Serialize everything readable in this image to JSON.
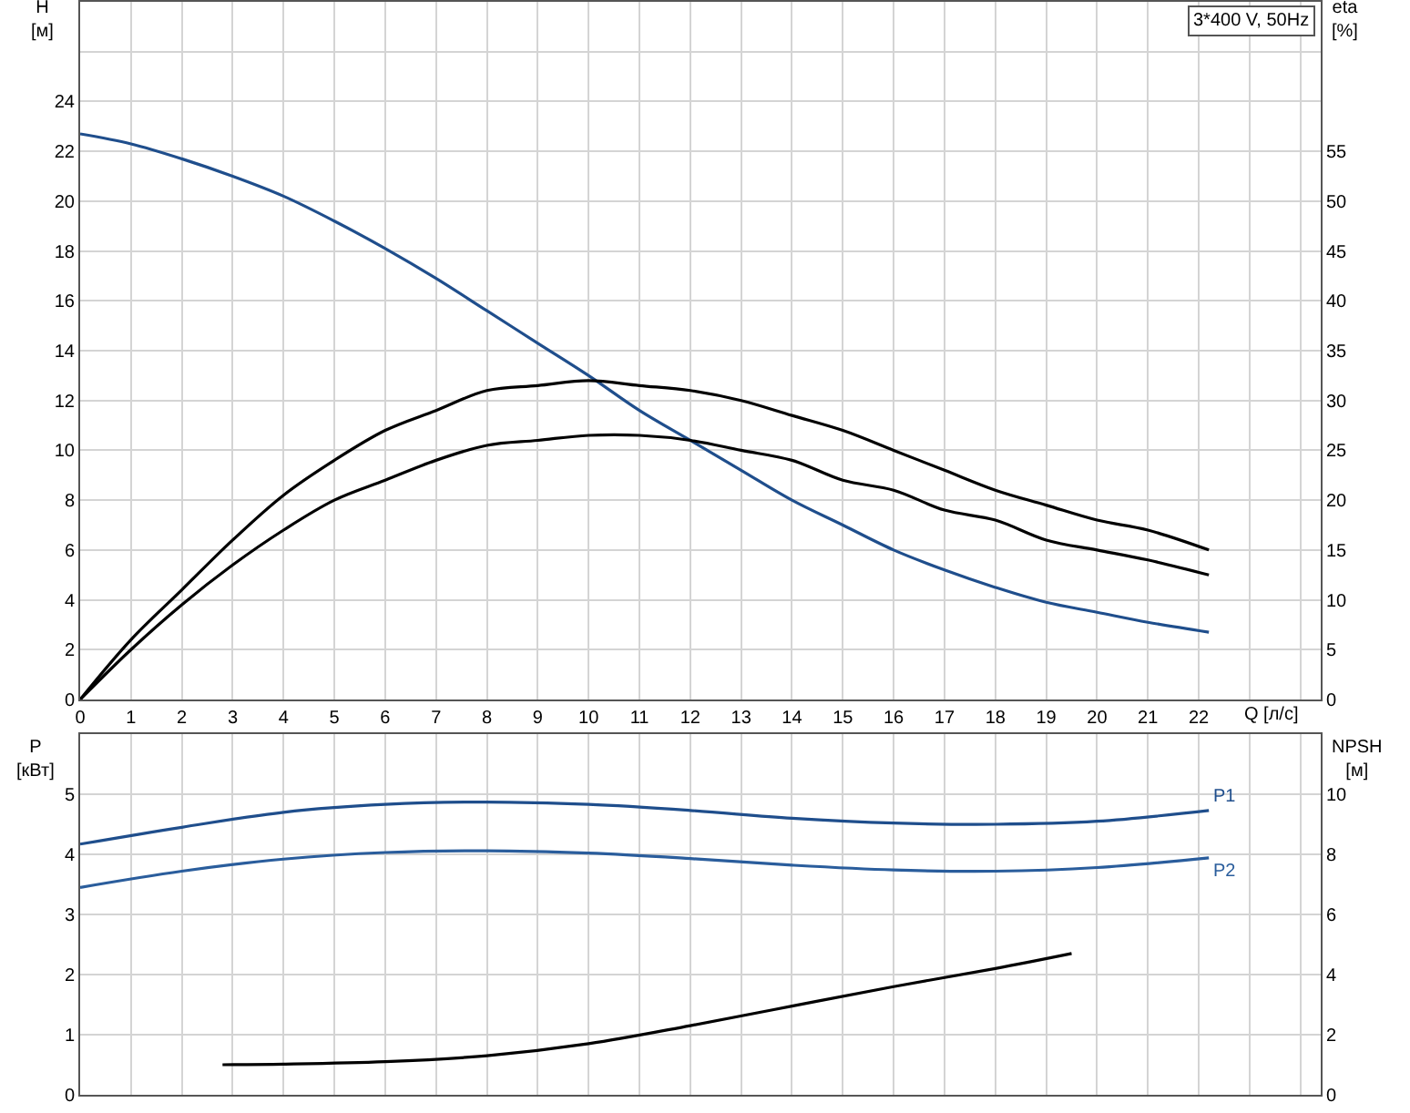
{
  "chart_data": [
    {
      "type": "line",
      "title": "3*400 V, 50Hz",
      "xlabel": "Q [л/с]",
      "ylabel": "H\n[м]",
      "y2label": "eta\n[%]",
      "grid": true,
      "legend": false,
      "line_style": "solid",
      "xlim": [
        0,
        24.4
      ],
      "xticks": [
        0,
        1,
        2,
        3,
        4,
        5,
        6,
        7,
        8,
        9,
        10,
        11,
        12,
        13,
        14,
        15,
        16,
        17,
        18,
        19,
        20,
        21,
        22,
        {
          "value": 23,
          "label": null
        },
        {
          "value": 24,
          "label": null
        }
      ],
      "ylim": [
        0,
        28
      ],
      "yticks": [
        0,
        2,
        4,
        6,
        8,
        10,
        12,
        14,
        16,
        18,
        20,
        22,
        24,
        {
          "value": 26,
          "label": null
        }
      ],
      "y2lim": [
        0,
        70
      ],
      "y2ticks": [
        0,
        5,
        10,
        15,
        20,
        25,
        30,
        35,
        40,
        45,
        50,
        55
      ],
      "series": [
        {
          "color": "#1f4e8c",
          "x": [
            0,
            1,
            2,
            3,
            4,
            5,
            6,
            7,
            8,
            9,
            10,
            11,
            12,
            13,
            14,
            15,
            16,
            17,
            18,
            19,
            20,
            21,
            22.2
          ],
          "values": [
            22.7,
            22.3,
            21.7,
            21.0,
            20.2,
            19.2,
            18.1,
            16.9,
            15.6,
            14.3,
            13.0,
            11.6,
            10.4,
            9.2,
            8.0,
            7.0,
            6.0,
            5.2,
            4.5,
            3.9,
            3.5,
            3.1,
            2.7
          ]
        },
        {
          "color": "#000000",
          "axis": "y2",
          "x": [
            0,
            1,
            2,
            3,
            4,
            5,
            6,
            7,
            8,
            9,
            10,
            11,
            12,
            13,
            14,
            15,
            16,
            17,
            18,
            19,
            20,
            21,
            22.2
          ],
          "values": [
            0,
            6,
            11,
            16,
            20.5,
            24,
            27,
            29,
            31,
            31.5,
            32,
            31.5,
            31,
            30,
            28.5,
            27,
            25,
            23,
            21,
            19.5,
            18,
            17,
            15
          ]
        },
        {
          "color": "#000000",
          "axis": "y2",
          "x": [
            0,
            1,
            2,
            3,
            4,
            5,
            6,
            7,
            8,
            9,
            10,
            11,
            12,
            13,
            14,
            15,
            16,
            17,
            18,
            19,
            20,
            21,
            22.2
          ],
          "values": [
            0,
            5,
            9.5,
            13.5,
            17,
            20,
            22,
            24,
            25.5,
            26,
            26.5,
            26.5,
            26,
            25,
            24,
            22,
            21,
            19,
            18,
            16,
            15,
            14,
            12.5
          ]
        }
      ]
    },
    {
      "type": "line",
      "ylabel": "P\n[кВт]",
      "y2label": "NPSH\n[м]",
      "grid": true,
      "legend": false,
      "line_style": "solid",
      "tick_labels": "y",
      "xlim": [
        0,
        24.4
      ],
      "xticks": [
        0,
        1,
        2,
        3,
        4,
        5,
        6,
        7,
        8,
        9,
        10,
        11,
        12,
        13,
        14,
        15,
        16,
        17,
        18,
        19,
        20,
        21,
        22,
        23,
        24
      ],
      "ylim": [
        0,
        6
      ],
      "yticks": [
        0,
        1,
        2,
        3,
        4,
        5
      ],
      "y2lim": [
        0,
        12
      ],
      "y2ticks": [
        0,
        2,
        4,
        6,
        8,
        10
      ],
      "series": [
        {
          "name": "P1",
          "color": "#1f4e8c",
          "x": [
            0,
            2,
            4,
            6,
            8,
            10,
            12,
            14,
            16,
            18,
            20,
            22.2
          ],
          "values": [
            4.17,
            4.45,
            4.7,
            4.83,
            4.87,
            4.83,
            4.73,
            4.6,
            4.52,
            4.5,
            4.55,
            4.73
          ]
        },
        {
          "name": "P2",
          "color": "#2a5d9c",
          "x": [
            0,
            2,
            4,
            6,
            8,
            10,
            12,
            14,
            16,
            18,
            20,
            22.2
          ],
          "values": [
            3.45,
            3.72,
            3.92,
            4.03,
            4.06,
            4.02,
            3.93,
            3.82,
            3.74,
            3.72,
            3.78,
            3.94
          ]
        },
        {
          "color": "#000000",
          "axis": "y2",
          "x": [
            2.8,
            4,
            6,
            8,
            10,
            12,
            14,
            16,
            18,
            19.5
          ],
          "values": [
            1.0,
            1.02,
            1.1,
            1.3,
            1.7,
            2.3,
            2.95,
            3.6,
            4.2,
            4.7
          ]
        }
      ]
    }
  ]
}
